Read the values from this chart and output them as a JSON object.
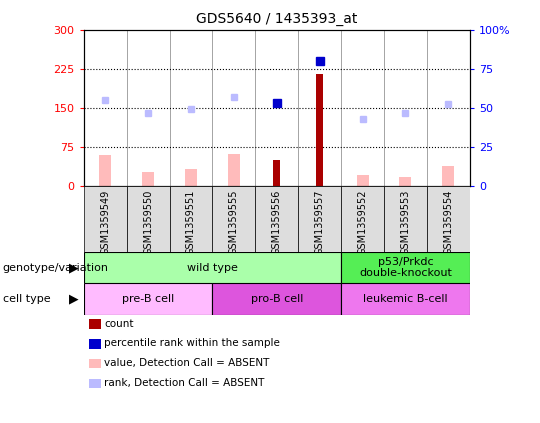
{
  "title": "GDS5640 / 1435393_at",
  "samples": [
    "GSM1359549",
    "GSM1359550",
    "GSM1359551",
    "GSM1359555",
    "GSM1359556",
    "GSM1359557",
    "GSM1359552",
    "GSM1359553",
    "GSM1359554"
  ],
  "count_values": [
    null,
    null,
    null,
    null,
    50,
    215,
    null,
    null,
    null
  ],
  "rank_values": [
    null,
    null,
    null,
    null,
    160,
    240,
    null,
    null,
    null
  ],
  "absent_value_bars": [
    60,
    28,
    32,
    62,
    null,
    null,
    22,
    18,
    38
  ],
  "absent_rank_dots": [
    165,
    140,
    148,
    170,
    null,
    null,
    128,
    140,
    158
  ],
  "ylim_left": [
    0,
    300
  ],
  "ylim_right": [
    0,
    100
  ],
  "yticks_left": [
    0,
    75,
    150,
    225,
    300
  ],
  "yticks_right": [
    0,
    25,
    50,
    75,
    100
  ],
  "hlines": [
    75,
    150,
    225
  ],
  "color_count": "#aa0000",
  "color_rank": "#0000cc",
  "color_absent_value": "#ffbbbb",
  "color_absent_rank": "#bbbbff",
  "genotype_groups": [
    {
      "label": "wild type",
      "start": 0,
      "end": 6,
      "color": "#aaffaa"
    },
    {
      "label": "p53/Prkdc\ndouble-knockout",
      "start": 6,
      "end": 9,
      "color": "#55ee55"
    }
  ],
  "cell_type_groups": [
    {
      "label": "pre-B cell",
      "start": 0,
      "end": 3,
      "color": "#ffbbff"
    },
    {
      "label": "pro-B cell",
      "start": 3,
      "end": 6,
      "color": "#dd55dd"
    },
    {
      "label": "leukemic B-cell",
      "start": 6,
      "end": 9,
      "color": "#ee77ee"
    }
  ],
  "legend_items": [
    {
      "color": "#aa0000",
      "label": "count",
      "marker": "s"
    },
    {
      "color": "#0000cc",
      "label": "percentile rank within the sample",
      "marker": "s"
    },
    {
      "color": "#ffbbbb",
      "label": "value, Detection Call = ABSENT",
      "marker": "s"
    },
    {
      "color": "#bbbbff",
      "label": "rank, Detection Call = ABSENT",
      "marker": "s"
    }
  ]
}
